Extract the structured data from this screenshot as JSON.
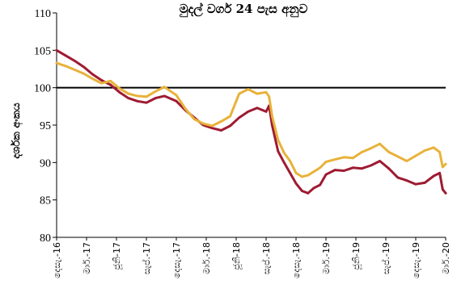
{
  "chart_data": {
    "type": "line",
    "title": "මුදල් වර්ග 24 පැස අනුව",
    "ylabel": "දර්ශක අංකය",
    "xlabel": "",
    "ylim": [
      80,
      110
    ],
    "yticks": [
      80,
      85,
      90,
      95,
      100,
      105,
      110
    ],
    "reference_line": 100,
    "x_categories": [
      "දෙසැ.-16",
      "මාර්.-17",
      "ජූනි-17",
      "සැප්.-17",
      "දෙසැ.-17",
      "මාර්.-18",
      "ජූනි-18",
      "සැප්.-18",
      "දෙසැ.-18",
      "මාර්.-19",
      "ජූනි-19",
      "සැප්.-19",
      "දෙසැ.-19",
      "මාර්.-20"
    ],
    "legend": "none",
    "grid": false,
    "series": [
      {
        "color": "#9e1b32",
        "points": [
          [
            0.0,
            105.0
          ],
          [
            0.3,
            104.3
          ],
          [
            0.6,
            103.6
          ],
          [
            0.9,
            102.8
          ],
          [
            1.2,
            101.8
          ],
          [
            1.5,
            101.0
          ],
          [
            1.8,
            100.4
          ],
          [
            2.1,
            99.4
          ],
          [
            2.4,
            98.6
          ],
          [
            2.7,
            98.2
          ],
          [
            3.0,
            98.0
          ],
          [
            3.3,
            98.6
          ],
          [
            3.6,
            98.9
          ],
          [
            4.0,
            98.2
          ],
          [
            4.3,
            97.0
          ],
          [
            4.6,
            96.0
          ],
          [
            4.9,
            95.0
          ],
          [
            5.2,
            94.6
          ],
          [
            5.5,
            94.3
          ],
          [
            5.8,
            94.9
          ],
          [
            6.1,
            96.0
          ],
          [
            6.4,
            96.8
          ],
          [
            6.7,
            97.3
          ],
          [
            7.0,
            96.8
          ],
          [
            7.1,
            97.6
          ],
          [
            7.2,
            95.0
          ],
          [
            7.4,
            91.5
          ],
          [
            7.6,
            90.0
          ],
          [
            7.8,
            88.6
          ],
          [
            8.0,
            87.2
          ],
          [
            8.2,
            86.2
          ],
          [
            8.4,
            85.9
          ],
          [
            8.6,
            86.6
          ],
          [
            8.8,
            87.0
          ],
          [
            9.0,
            88.4
          ],
          [
            9.3,
            89.0
          ],
          [
            9.6,
            88.9
          ],
          [
            9.9,
            89.3
          ],
          [
            10.2,
            89.2
          ],
          [
            10.5,
            89.6
          ],
          [
            10.8,
            90.2
          ],
          [
            11.1,
            89.2
          ],
          [
            11.4,
            88.0
          ],
          [
            11.7,
            87.6
          ],
          [
            12.0,
            87.1
          ],
          [
            12.3,
            87.3
          ],
          [
            12.6,
            88.2
          ],
          [
            12.8,
            88.6
          ],
          [
            12.9,
            86.4
          ],
          [
            13.0,
            85.9
          ]
        ]
      },
      {
        "color": "#e8b23a",
        "points": [
          [
            0.0,
            103.3
          ],
          [
            0.3,
            102.9
          ],
          [
            0.6,
            102.4
          ],
          [
            0.9,
            101.9
          ],
          [
            1.2,
            101.2
          ],
          [
            1.5,
            100.6
          ],
          [
            1.8,
            100.9
          ],
          [
            2.1,
            99.9
          ],
          [
            2.4,
            99.2
          ],
          [
            2.7,
            98.9
          ],
          [
            3.0,
            98.8
          ],
          [
            3.3,
            99.5
          ],
          [
            3.6,
            100.1
          ],
          [
            4.0,
            99.0
          ],
          [
            4.3,
            97.2
          ],
          [
            4.6,
            95.8
          ],
          [
            4.9,
            95.2
          ],
          [
            5.2,
            94.9
          ],
          [
            5.5,
            95.5
          ],
          [
            5.8,
            96.2
          ],
          [
            6.1,
            99.2
          ],
          [
            6.4,
            99.8
          ],
          [
            6.7,
            99.2
          ],
          [
            7.0,
            99.4
          ],
          [
            7.1,
            98.8
          ],
          [
            7.2,
            96.2
          ],
          [
            7.4,
            93.0
          ],
          [
            7.6,
            91.3
          ],
          [
            7.8,
            90.2
          ],
          [
            8.0,
            88.6
          ],
          [
            8.2,
            88.1
          ],
          [
            8.4,
            88.3
          ],
          [
            8.6,
            88.8
          ],
          [
            8.8,
            89.3
          ],
          [
            9.0,
            90.1
          ],
          [
            9.3,
            90.4
          ],
          [
            9.6,
            90.7
          ],
          [
            9.9,
            90.6
          ],
          [
            10.2,
            91.4
          ],
          [
            10.5,
            91.9
          ],
          [
            10.8,
            92.5
          ],
          [
            11.1,
            91.4
          ],
          [
            11.4,
            90.8
          ],
          [
            11.7,
            90.2
          ],
          [
            12.0,
            90.9
          ],
          [
            12.3,
            91.6
          ],
          [
            12.6,
            92.0
          ],
          [
            12.8,
            91.4
          ],
          [
            12.9,
            89.4
          ],
          [
            13.0,
            89.8
          ]
        ]
      }
    ]
  }
}
